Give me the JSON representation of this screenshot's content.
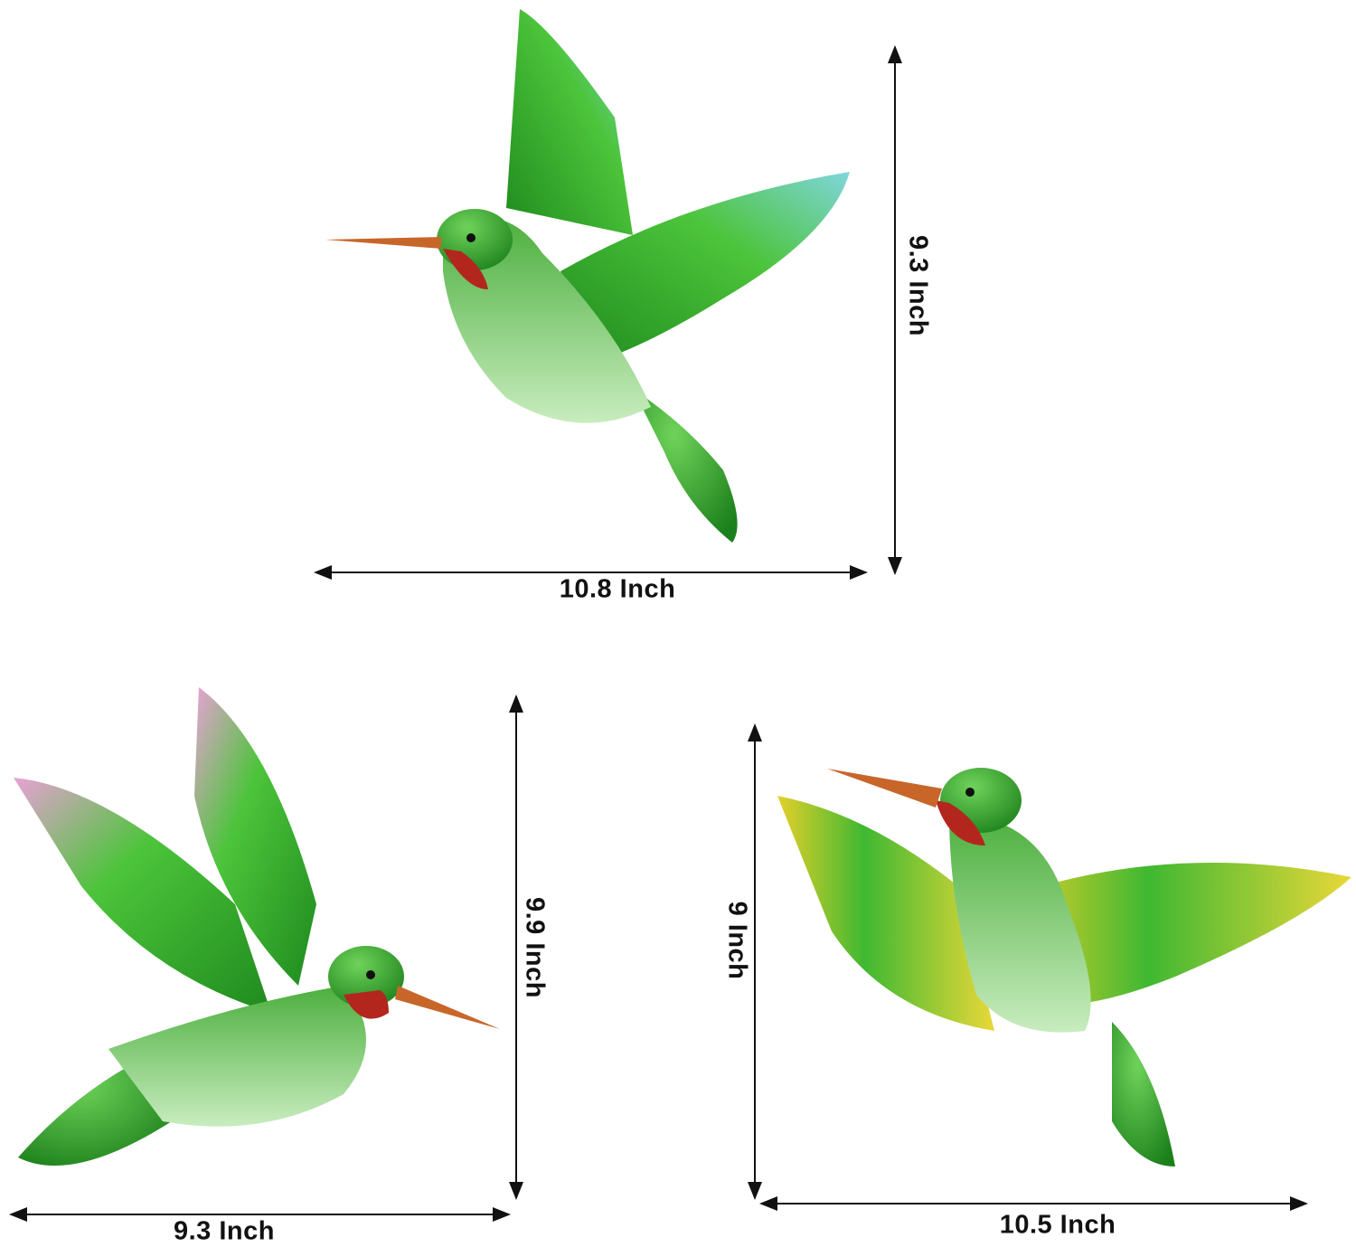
{
  "products": [
    {
      "name": "hummingbird-blue-tips",
      "width_label": "10.8 Inch",
      "height_label": "9.3 Inch",
      "wing_tip_color": "#6fd0d8"
    },
    {
      "name": "hummingbird-pink-tips",
      "width_label": "9.3 Inch",
      "height_label": "9.9 Inch",
      "wing_tip_color": "#e59ad0"
    },
    {
      "name": "hummingbird-yellow-tips",
      "width_label": "10.5 Inch",
      "height_label": "9 Inch",
      "wing_tip_color": "#e6d12a"
    }
  ],
  "colors": {
    "body_green": "#2fa52a",
    "throat_red": "#b3261e",
    "beak": "#c8662a",
    "belly": "#bfe6b0",
    "arrow": "#111111"
  }
}
